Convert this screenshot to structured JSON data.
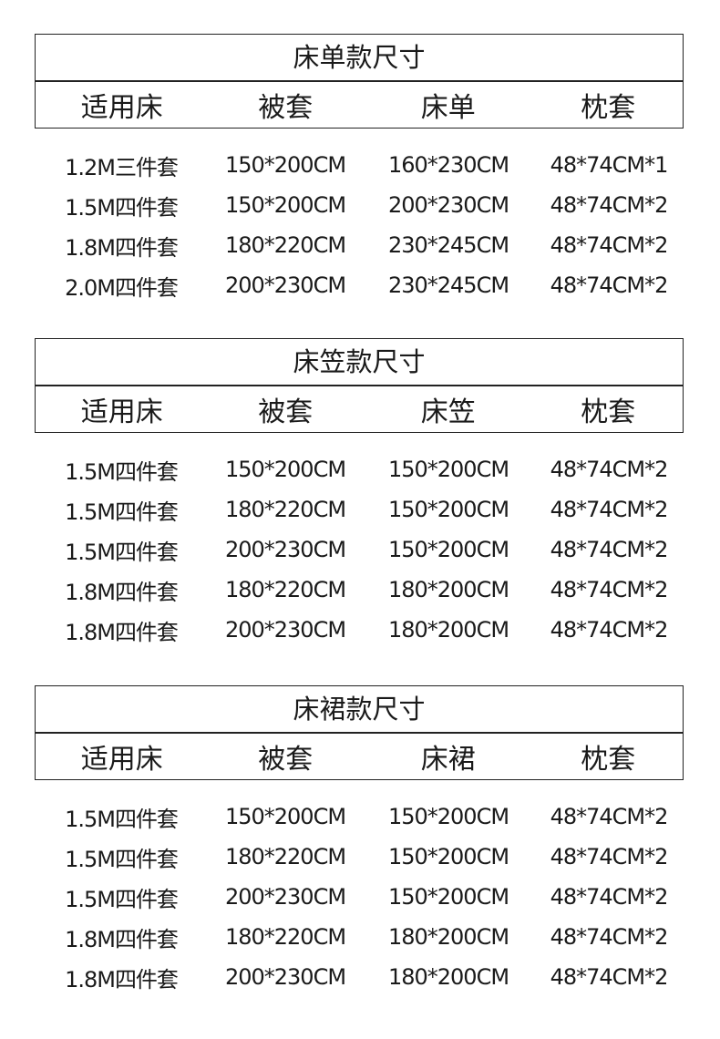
{
  "sections": [
    {
      "title": "床单款尺寸",
      "headers": [
        "适用床",
        "被套",
        "床单",
        "枕套"
      ],
      "rows": [
        [
          "1.2M三件套",
          "150*200CM",
          "160*230CM",
          "48*74CM*1"
        ],
        [
          "1.5M四件套",
          "150*200CM",
          "200*230CM",
          "48*74CM*2"
        ],
        [
          "1.8M四件套",
          "180*220CM",
          "230*245CM",
          "48*74CM*2"
        ],
        [
          "2.0M四件套",
          "200*230CM",
          "230*245CM",
          "48*74CM*2"
        ]
      ]
    },
    {
      "title": "床笠款尺寸",
      "headers": [
        "适用床",
        "被套",
        "床笠",
        "枕套"
      ],
      "rows": [
        [
          "1.5M四件套",
          "150*200CM",
          "150*200CM",
          "48*74CM*2"
        ],
        [
          "1.5M四件套",
          "180*220CM",
          "150*200CM",
          "48*74CM*2"
        ],
        [
          "1.5M四件套",
          "200*230CM",
          "150*200CM",
          "48*74CM*2"
        ],
        [
          "1.8M四件套",
          "180*220CM",
          "180*200CM",
          "48*74CM*2"
        ],
        [
          "1.8M四件套",
          "200*230CM",
          "180*200CM",
          "48*74CM*2"
        ]
      ]
    },
    {
      "title": "床裙款尺寸",
      "headers": [
        "适用床",
        "被套",
        "床裙",
        "枕套"
      ],
      "rows": [
        [
          "1.5M四件套",
          "150*200CM",
          "150*200CM",
          "48*74CM*2"
        ],
        [
          "1.5M四件套",
          "180*220CM",
          "150*200CM",
          "48*74CM*2"
        ],
        [
          "1.5M四件套",
          "200*230CM",
          "150*200CM",
          "48*74CM*2"
        ],
        [
          "1.8M四件套",
          "180*220CM",
          "180*200CM",
          "48*74CM*2"
        ],
        [
          "1.8M四件套",
          "200*230CM",
          "180*200CM",
          "48*74CM*2"
        ]
      ]
    }
  ]
}
